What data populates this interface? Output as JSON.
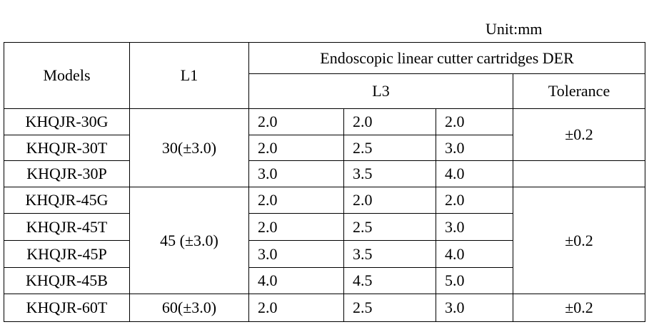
{
  "unit": "Unit:mm",
  "header": {
    "models": "Models",
    "l1": "L1",
    "group_title": "Endoscopic linear cutter cartridges DER",
    "l3": "L3",
    "tolerance": "Tolerance"
  },
  "groups": [
    {
      "l1": "30(±3.0)",
      "tolerance": "±0.2",
      "rows": [
        {
          "model": "KHQJR-30G",
          "l3": [
            "2.0",
            "2.0",
            "2.0"
          ]
        },
        {
          "model": "KHQJR-30T",
          "l3": [
            "2.0",
            "2.5",
            "3.0"
          ]
        },
        {
          "model": "KHQJR-30P",
          "l3": [
            "3.0",
            "3.5",
            "4.0"
          ]
        }
      ]
    },
    {
      "l1": "45 (±3.0)",
      "tolerance": "±0.2",
      "rows": [
        {
          "model": "KHQJR-45G",
          "l3": [
            "2.0",
            "2.0",
            "2.0"
          ]
        },
        {
          "model": "KHQJR-45T",
          "l3": [
            "2.0",
            "2.5",
            "3.0"
          ]
        },
        {
          "model": "KHQJR-45P",
          "l3": [
            "3.0",
            "3.5",
            "4.0"
          ]
        },
        {
          "model": "KHQJR-45B",
          "l3": [
            "4.0",
            "4.5",
            "5.0"
          ]
        }
      ]
    },
    {
      "l1": "60(±3.0)",
      "tolerance": "±0.2",
      "rows": [
        {
          "model": "KHQJR-60T",
          "l3": [
            "2.0",
            "2.5",
            "3.0"
          ]
        }
      ]
    }
  ]
}
